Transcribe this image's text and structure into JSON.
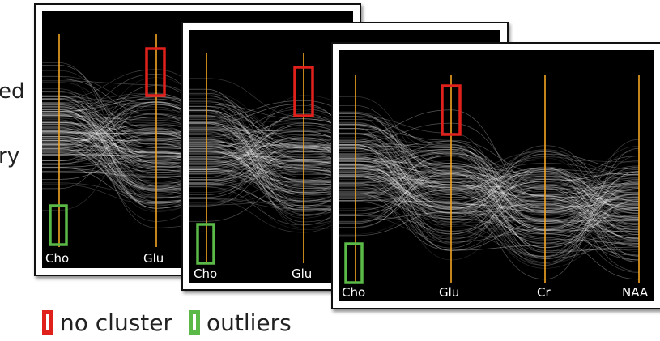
{
  "side_text": [
    "ed",
    "ry"
  ],
  "axes": [
    "Cho",
    "Glu",
    "Cr",
    "NAA"
  ],
  "panels": [
    {
      "visible_axes": [
        "Cho",
        "Glu"
      ],
      "seed": 11
    },
    {
      "visible_axes": [
        "Cho",
        "Glu"
      ],
      "seed": 23
    },
    {
      "visible_axes": [
        "Cho",
        "Glu",
        "Cr",
        "NAA"
      ],
      "seed": 37
    }
  ],
  "legend": {
    "no_cluster_label": "no cluster",
    "outliers_label": "outliers"
  },
  "colors": {
    "background": "#000000",
    "axis": "#f5a623",
    "lines": "#ffffff",
    "no_cluster": "#e0201b",
    "outliers": "#5ab947"
  }
}
